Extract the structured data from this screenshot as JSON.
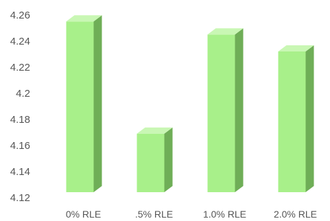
{
  "chart_data": {
    "type": "bar",
    "style": "3d-column",
    "categories": [
      "0% RLE",
      ".5% RLE",
      "1.0% RLE",
      "2.0% RLE"
    ],
    "values": [
      4.258,
      4.172,
      4.248,
      4.235
    ],
    "title": "",
    "xlabel": "",
    "ylabel": "",
    "ylim": [
      4.12,
      4.26
    ],
    "yticks": [
      "4.12",
      "4.14",
      "4.16",
      "4.18",
      "4.2",
      "4.22",
      "4.24",
      "4.26"
    ],
    "grid": false,
    "legend": "none",
    "colors": {
      "front": "#a8f08a",
      "top": "#c9f7b4",
      "side": "#6fae57",
      "text": "#555555"
    }
  }
}
